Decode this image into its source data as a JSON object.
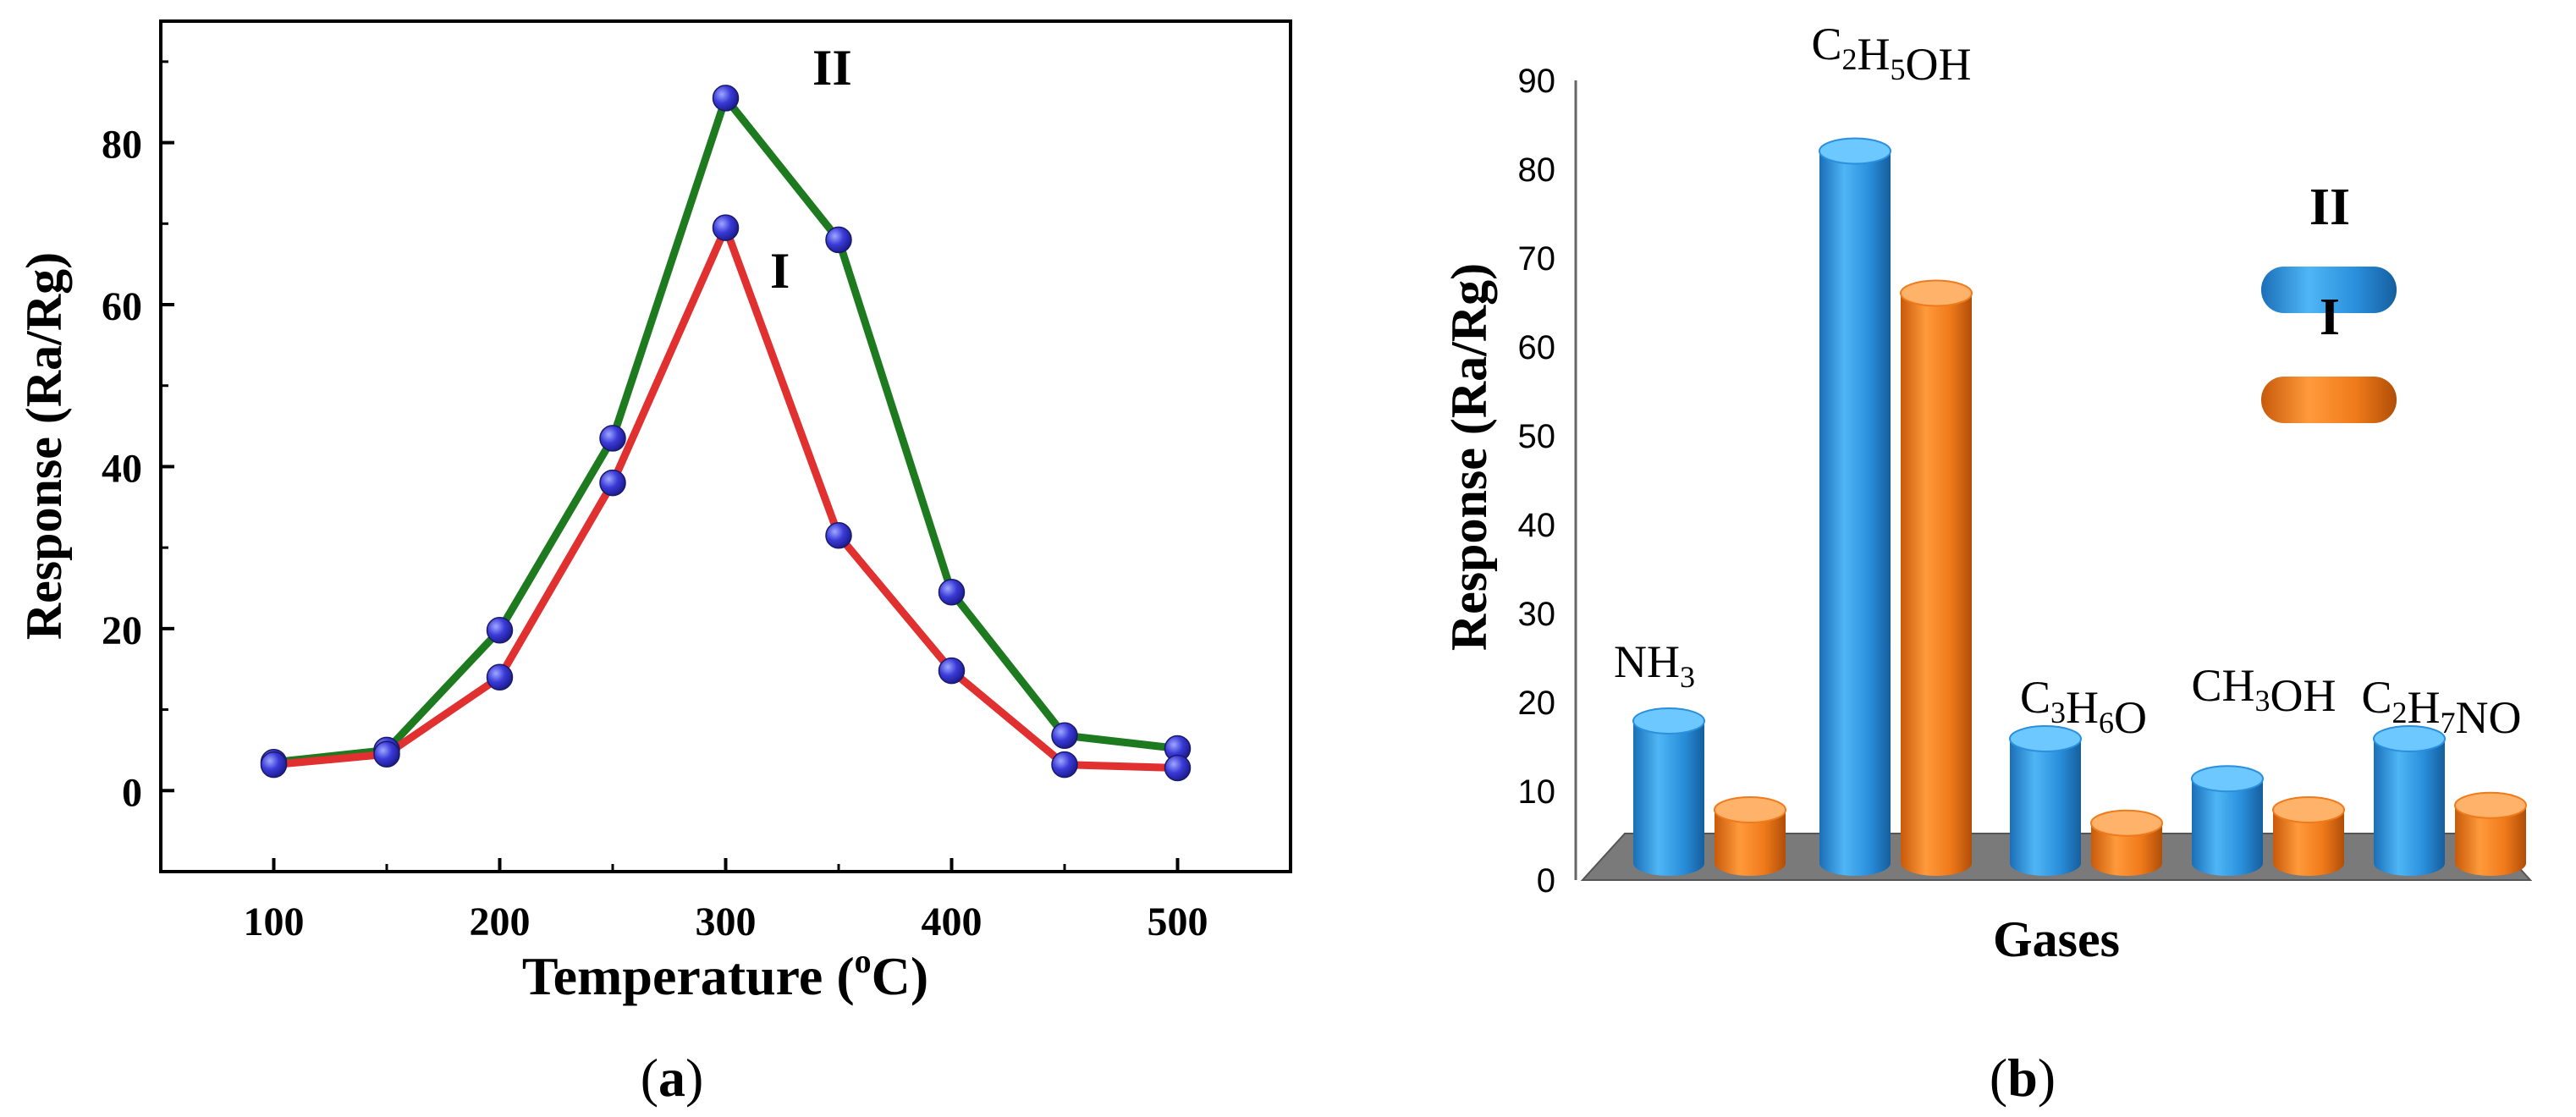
{
  "panels": {
    "a": {
      "caption": {
        "open": "(",
        "letter": "a",
        "close": ")"
      },
      "chart_data": {
        "type": "line",
        "xlabel": "Temperature (oC)",
        "xlabel_parts": {
          "main": "Temperature (",
          "sup": "o",
          "end": "C)"
        },
        "ylabel": "Response (Ra/Rg)",
        "xlim": [
          50,
          550
        ],
        "ylim": [
          -10,
          95
        ],
        "xticks": [
          100,
          200,
          300,
          400,
          500
        ],
        "yticks": [
          0,
          20,
          40,
          60,
          80
        ],
        "grid": false,
        "x": [
          100,
          150,
          200,
          250,
          300,
          350,
          400,
          450,
          500
        ],
        "series": [
          {
            "name": "II",
            "color": "#1e7a1e",
            "marker_color": "#3333cc",
            "values": [
              3.5,
              5,
              19.8,
              43.5,
              85.5,
              68,
              24.5,
              6.8,
              5.2
            ]
          },
          {
            "name": "I",
            "color": "#e03030",
            "marker_color": "#3333cc",
            "values": [
              3.2,
              4.5,
              14,
              38,
              69.5,
              31.5,
              14.8,
              3.2,
              2.8
            ]
          }
        ]
      }
    },
    "b": {
      "caption": {
        "open": "(",
        "letter": "b",
        "close": ")"
      },
      "chart_data": {
        "type": "bar",
        "xlabel": "Gases",
        "ylabel": "Response (Ra/Rg)",
        "ylim": [
          0,
          90
        ],
        "yticks": [
          0,
          10,
          20,
          30,
          40,
          50,
          60,
          70,
          80,
          90
        ],
        "grid": false,
        "categories": [
          {
            "base": "NH",
            "parts": [
              [
                "NH",
                ""
              ],
              [
                "3",
                "sub"
              ]
            ]
          },
          {
            "base": "C2H5OH",
            "parts": [
              [
                "C",
                ""
              ],
              [
                "2",
                "sub"
              ],
              [
                "H",
                ""
              ],
              [
                "5",
                "sub"
              ],
              [
                "OH",
                ""
              ]
            ]
          },
          {
            "base": "C3H6O",
            "parts": [
              [
                "C",
                ""
              ],
              [
                "3",
                "sub"
              ],
              [
                "H",
                ""
              ],
              [
                "6",
                "sub"
              ],
              [
                "O",
                ""
              ]
            ]
          },
          {
            "base": "CH3OH",
            "parts": [
              [
                "CH",
                ""
              ],
              [
                "3",
                "sub"
              ],
              [
                "OH",
                ""
              ]
            ]
          },
          {
            "base": "C2H7NO",
            "parts": [
              [
                "C",
                ""
              ],
              [
                "2",
                "sub"
              ],
              [
                "H",
                ""
              ],
              [
                "7",
                "sub"
              ],
              [
                "NO",
                ""
              ]
            ]
          }
        ],
        "category_labels": [
          "NH3",
          "C2H5OH",
          "C3H6O",
          "CH3OH",
          "C2H7NO"
        ],
        "series": [
          {
            "name": "II",
            "color": "#2a8fdc",
            "values": [
              16,
              83,
              14,
              9.5,
              14
            ]
          },
          {
            "name": "I",
            "color": "#f07a1a",
            "values": [
              6,
              67,
              4.5,
              6,
              6.5
            ]
          }
        ],
        "legend_position": "right"
      }
    }
  }
}
